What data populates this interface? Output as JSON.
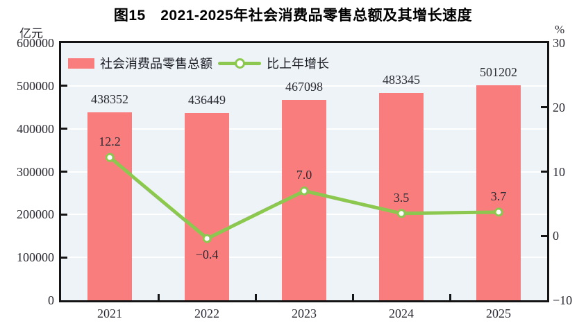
{
  "title": "图15　2021-2025年社会消费品零售总额及其增长速度",
  "chart_data": {
    "type": "combo",
    "categories": [
      "2021",
      "2022",
      "2023",
      "2024",
      "2025"
    ],
    "series": [
      {
        "name": "社会消费品零售总额",
        "kind": "bar",
        "axis": "left",
        "color": "#fa7d7d",
        "values": [
          438352,
          436449,
          467098,
          483345,
          501202
        ],
        "labels": [
          "438352",
          "436449",
          "467098",
          "483345",
          "501202"
        ]
      },
      {
        "name": "比上年增长",
        "kind": "line",
        "axis": "right",
        "color": "#8cc850",
        "marker": "white-circle",
        "values": [
          12.2,
          -0.4,
          7.0,
          3.5,
          3.7
        ],
        "labels": [
          "12.2",
          "−0.4",
          "7.0",
          "3.5",
          "3.7"
        ],
        "label_side": [
          "above",
          "below",
          "above",
          "above",
          "above"
        ]
      }
    ],
    "left_axis": {
      "unit": "亿元",
      "min": 0,
      "max": 600000,
      "tick_step": 100000,
      "ticks": [
        "600000",
        "500000",
        "400000",
        "300000",
        "200000",
        "100000",
        "0"
      ]
    },
    "right_axis": {
      "unit": "%",
      "min": -10,
      "max": 30,
      "tick_step": 10,
      "ticks": [
        "30",
        "20",
        "10",
        "0",
        "−10"
      ]
    },
    "legend_position": "top-left-inside",
    "grid": "horizontal-white",
    "plot_background": "#edf3f7",
    "gridline_color": "#ffffff",
    "axis_color": "#141414",
    "label_color": "#2a2a32",
    "title_color": "#000000"
  }
}
